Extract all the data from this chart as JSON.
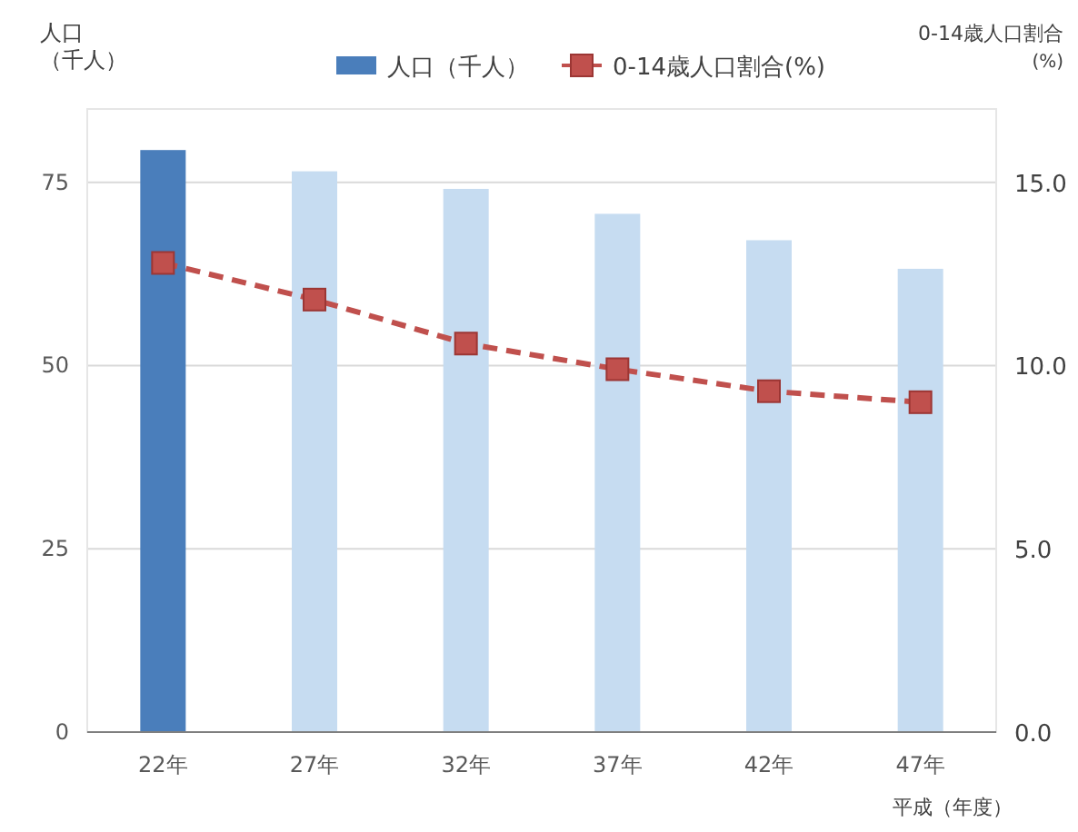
{
  "chart_data": {
    "type": "bar",
    "categories": [
      "22年",
      "27年",
      "32年",
      "37年",
      "42年",
      "47年"
    ],
    "ylabel": "人口（千人）",
    "y2label": "0-14歳人口割合(%)",
    "xlabel": "平成（年度）",
    "ylim": [
      0,
      85
    ],
    "yticks": [
      0,
      25,
      50,
      75
    ],
    "y2lim": [
      0,
      17
    ],
    "y2ticks": [
      {
        "value": 0,
        "label": "0.0"
      },
      {
        "value": 5,
        "label": "5.0"
      },
      {
        "value": 10,
        "label": "10.0"
      },
      {
        "value": 15,
        "label": "15.0"
      }
    ],
    "grid": "y",
    "legend": "top",
    "series": [
      {
        "name": "人口（千人）",
        "color": "#4a7ebb",
        "colors": [
          "#4a7ebb",
          "#c6dcf1",
          "#c6dcf1",
          "#c6dcf1",
          "#c6dcf1",
          "#c6dcf1"
        ],
        "values": [
          79.4,
          76.5,
          74.1,
          70.7,
          67.1,
          63.2
        ]
      },
      {
        "name": "0-14歳人口割合(%)",
        "type": "line",
        "axis": "y2",
        "color": "#c0504d",
        "marker": "square",
        "line_style": "dashed",
        "values": [
          12.8,
          11.8,
          10.6,
          9.9,
          9.3,
          9.0
        ]
      }
    ]
  }
}
